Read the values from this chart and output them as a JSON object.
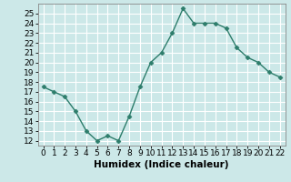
{
  "x": [
    0,
    1,
    2,
    3,
    4,
    5,
    6,
    7,
    8,
    9,
    10,
    11,
    12,
    13,
    14,
    15,
    16,
    17,
    18,
    19,
    20,
    21,
    22
  ],
  "y": [
    17.5,
    17.0,
    16.5,
    15.0,
    13.0,
    12.0,
    12.5,
    12.0,
    14.5,
    17.5,
    20.0,
    21.0,
    23.0,
    25.5,
    24.0,
    24.0,
    24.0,
    23.5,
    21.5,
    20.5,
    20.0,
    19.0,
    18.5
  ],
  "line_color": "#2d7d6b",
  "marker": "D",
  "markersize": 2.5,
  "linewidth": 1.0,
  "xlabel": "Humidex (Indice chaleur)",
  "xlim": [
    -0.5,
    22.5
  ],
  "ylim": [
    11.5,
    26
  ],
  "yticks": [
    12,
    13,
    14,
    15,
    16,
    17,
    18,
    19,
    20,
    21,
    22,
    23,
    24,
    25
  ],
  "xticks": [
    0,
    1,
    2,
    3,
    4,
    5,
    6,
    7,
    8,
    9,
    10,
    11,
    12,
    13,
    14,
    15,
    16,
    17,
    18,
    19,
    20,
    21,
    22
  ],
  "xtick_labels": [
    "0",
    "1",
    "2",
    "3",
    "4",
    "5",
    "6",
    "7",
    "8",
    "9",
    "10",
    "11",
    "12",
    "13",
    "14",
    "15",
    "16",
    "17",
    "18",
    "19",
    "20",
    "21",
    "22"
  ],
  "bg_color": "#cce8e8",
  "grid_color": "#ffffff",
  "xlabel_fontsize": 7.5,
  "tick_fontsize": 6.5
}
